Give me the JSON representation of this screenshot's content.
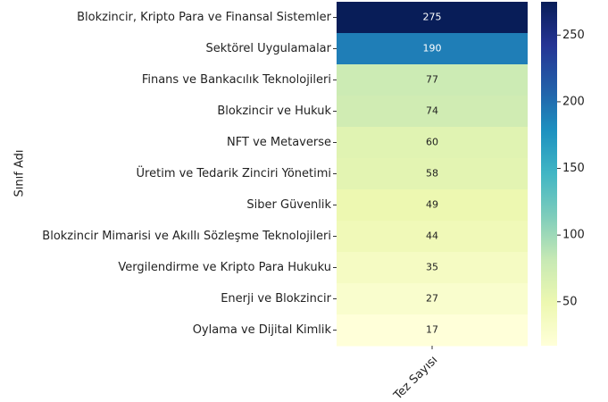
{
  "chart_data": {
    "type": "heatmap",
    "ylabel": "Sınıf Adı",
    "columns": [
      "Tez Sayısı"
    ],
    "categories": [
      "Blokzincir, Kripto Para ve Finansal Sistemler",
      "Sektörel Uygulamalar",
      "Finans ve Bankacılık Teknolojileri",
      "Blokzincir ve Hukuk",
      "NFT ve Metaverse",
      "Üretim ve Tedarik Zinciri Yönetimi",
      "Siber Güvenlik",
      "Blokzincir Mimarisi ve Akıllı Sözleşme Teknolojileri",
      "Vergilendirme ve Kripto Para Hukuku",
      "Enerji ve Blokzincir",
      "Oylama ve Dijital Kimlik"
    ],
    "values": [
      275,
      190,
      77,
      74,
      60,
      58,
      49,
      44,
      35,
      27,
      17
    ],
    "colormap": "YlGnBu",
    "clim": [
      17,
      275
    ],
    "colorbar_ticks": [
      50,
      100,
      150,
      200,
      250
    ]
  }
}
